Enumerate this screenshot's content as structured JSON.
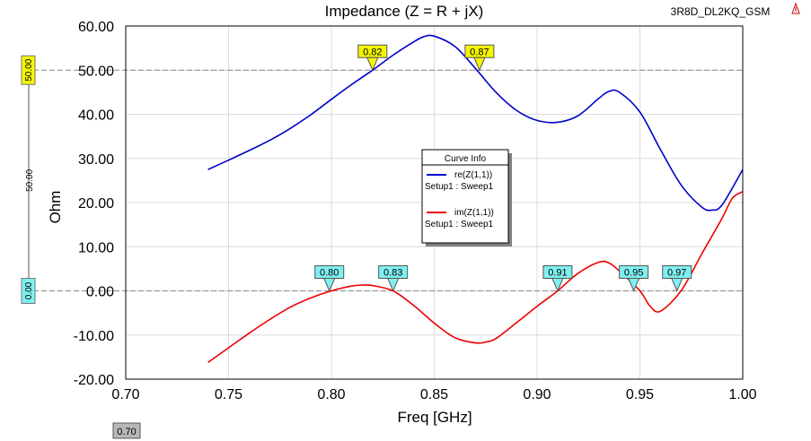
{
  "design_name": "3R8D_DL2KQ_GSM",
  "chart_data": {
    "type": "line",
    "title": "Impedance (Z = R + jX)",
    "xlabel": "Freq [GHz]",
    "ylabel": "Ohm",
    "xlim": [
      0.7,
      1.0
    ],
    "ylim": [
      -20.0,
      60.0
    ],
    "x_ticks": [
      "0.70",
      "0.75",
      "0.80",
      "0.85",
      "0.90",
      "0.95",
      "1.00"
    ],
    "y_ticks": [
      "-20.00",
      "-10.00",
      "0.00",
      "10.00",
      "20.00",
      "30.00",
      "40.00",
      "50.00",
      "60.00"
    ],
    "x_tick_values": [
      0.7,
      0.75,
      0.8,
      0.85,
      0.9,
      0.95,
      1.0
    ],
    "y_tick_values": [
      -20,
      -10,
      0,
      10,
      20,
      30,
      40,
      50,
      60
    ],
    "grid": true,
    "legend": {
      "title": "Curve Info",
      "placement": "center",
      "entries": [
        {
          "name": "re(Z(1,1))",
          "setup": "Setup1 : Sweep1"
        },
        {
          "name": "im(Z(1,1))",
          "setup": "Setup1 : Sweep1"
        }
      ]
    },
    "series": [
      {
        "name": "re(Z(1,1))",
        "color": "#0000cc",
        "x": [
          0.74,
          0.75,
          0.76,
          0.77,
          0.78,
          0.79,
          0.8,
          0.81,
          0.82,
          0.83,
          0.84,
          0.845,
          0.85,
          0.86,
          0.87,
          0.88,
          0.89,
          0.9,
          0.91,
          0.92,
          0.93,
          0.935,
          0.94,
          0.95,
          0.96,
          0.97,
          0.98,
          0.985,
          0.99,
          1.0
        ],
        "y": [
          27.5,
          29.6,
          31.8,
          34.1,
          36.8,
          39.9,
          43.4,
          46.8,
          50.0,
          53.4,
          56.4,
          57.6,
          57.7,
          55.4,
          50.4,
          45.0,
          40.9,
          38.6,
          38.2,
          39.7,
          43.6,
          45.2,
          45.0,
          40.5,
          32.0,
          24.0,
          19.0,
          18.3,
          19.5,
          27.5
        ]
      },
      {
        "name": "im(Z(1,1))",
        "color": "#ee0000",
        "x": [
          0.74,
          0.75,
          0.76,
          0.77,
          0.78,
          0.79,
          0.8,
          0.81,
          0.815,
          0.82,
          0.83,
          0.84,
          0.85,
          0.86,
          0.87,
          0.875,
          0.88,
          0.89,
          0.9,
          0.91,
          0.92,
          0.93,
          0.935,
          0.94,
          0.95,
          0.955,
          0.96,
          0.97,
          0.98,
          0.99,
          0.995,
          1.0
        ],
        "y": [
          -16.2,
          -12.9,
          -9.6,
          -6.5,
          -3.7,
          -1.6,
          0.0,
          1.1,
          1.3,
          1.2,
          0.0,
          -3.3,
          -7.3,
          -10.6,
          -11.8,
          -11.6,
          -10.8,
          -7.2,
          -3.5,
          0.0,
          4.0,
          6.5,
          6.3,
          4.5,
          0.0,
          -3.5,
          -4.6,
          0.0,
          8.3,
          16.5,
          21.0,
          22.5
        ]
      }
    ],
    "markers": [
      {
        "label": "0.82",
        "x": 0.82,
        "y": 50.0,
        "series": "re(Z(1,1))",
        "color": "#f5f500"
      },
      {
        "label": "0.87",
        "x": 0.872,
        "y": 50.0,
        "series": "re(Z(1,1))",
        "color": "#f5f500"
      },
      {
        "label": "0.80",
        "x": 0.799,
        "y": 0.0,
        "series": "im(Z(1,1))",
        "color": "#7ff0f0"
      },
      {
        "label": "0.83",
        "x": 0.83,
        "y": 0.0,
        "series": "im(Z(1,1))",
        "color": "#7ff0f0"
      },
      {
        "label": "0.91",
        "x": 0.91,
        "y": 0.0,
        "series": "im(Z(1,1))",
        "color": "#7ff0f0"
      },
      {
        "label": "0.95",
        "x": 0.947,
        "y": 0.0,
        "series": "im(Z(1,1))",
        "color": "#7ff0f0"
      },
      {
        "label": "0.97",
        "x": 0.968,
        "y": 0.0,
        "series": "im(Z(1,1))",
        "color": "#7ff0f0"
      }
    ],
    "reference_lines": [
      {
        "axis": "y",
        "value": 50.0,
        "label": "50.00",
        "tag_color": "#f5f500",
        "mid_label": "50.00"
      },
      {
        "axis": "y",
        "value": 0.0,
        "label": "0.00",
        "tag_color": "#7ff0f0"
      }
    ],
    "x_cursor_label": "0.70"
  }
}
